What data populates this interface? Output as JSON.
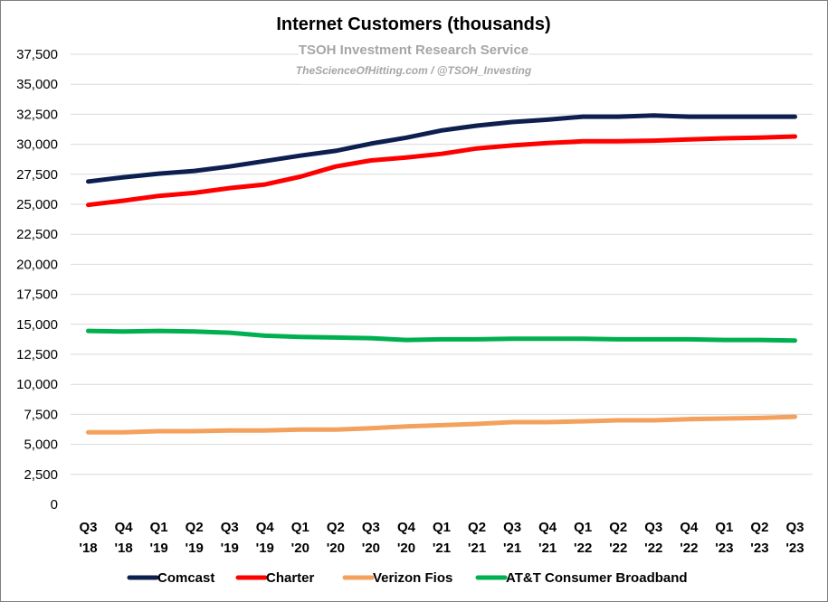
{
  "chart_data": {
    "type": "line",
    "title": "Internet Customers (thousands)",
    "watermark": {
      "line1": "TSOH Investment Research Service",
      "line2": "TheScienceOfHitting.com / @TSOH_Investing"
    },
    "xlabel": "",
    "ylabel": "",
    "ylim": [
      0,
      37500
    ],
    "ytick_step": 2500,
    "grid": true,
    "legend_position": "bottom",
    "categories": [
      [
        "Q3",
        "'18"
      ],
      [
        "Q4",
        "'18"
      ],
      [
        "Q1",
        "'19"
      ],
      [
        "Q2",
        "'19"
      ],
      [
        "Q3",
        "'19"
      ],
      [
        "Q4",
        "'19"
      ],
      [
        "Q1",
        "'20"
      ],
      [
        "Q2",
        "'20"
      ],
      [
        "Q3",
        "'20"
      ],
      [
        "Q4",
        "'20"
      ],
      [
        "Q1",
        "'21"
      ],
      [
        "Q2",
        "'21"
      ],
      [
        "Q3",
        "'21"
      ],
      [
        "Q4",
        "'21"
      ],
      [
        "Q1",
        "'22"
      ],
      [
        "Q2",
        "'22"
      ],
      [
        "Q3",
        "'22"
      ],
      [
        "Q4",
        "'22"
      ],
      [
        "Q1",
        "'23"
      ],
      [
        "Q2",
        "'23"
      ],
      [
        "Q3",
        "'23"
      ]
    ],
    "series": [
      {
        "name": "Comcast",
        "color": "#0d1f4f",
        "values": [
          26900,
          27250,
          27550,
          27780,
          28150,
          28600,
          29050,
          29450,
          30050,
          30550,
          31150,
          31550,
          31850,
          32050,
          32300,
          32300,
          32400,
          32300,
          32300,
          32300,
          32300
        ]
      },
      {
        "name": "Charter",
        "color": "#ff0000",
        "values": [
          24950,
          25300,
          25700,
          25950,
          26350,
          26650,
          27300,
          28150,
          28650,
          28900,
          29200,
          29650,
          29900,
          30100,
          30250,
          30250,
          30300,
          30400,
          30500,
          30550,
          30650
        ]
      },
      {
        "name": "Verizon Fios",
        "color": "#f4a15d",
        "values": [
          6000,
          6000,
          6100,
          6100,
          6150,
          6150,
          6230,
          6230,
          6350,
          6500,
          6600,
          6700,
          6850,
          6850,
          6920,
          7000,
          7000,
          7100,
          7150,
          7200,
          7300
        ]
      },
      {
        "name": "AT&T Consumer Broadband",
        "color": "#00b050",
        "values": [
          14450,
          14400,
          14450,
          14400,
          14300,
          14050,
          13950,
          13900,
          13850,
          13700,
          13750,
          13750,
          13800,
          13800,
          13800,
          13750,
          13750,
          13750,
          13700,
          13700,
          13650
        ]
      }
    ]
  }
}
